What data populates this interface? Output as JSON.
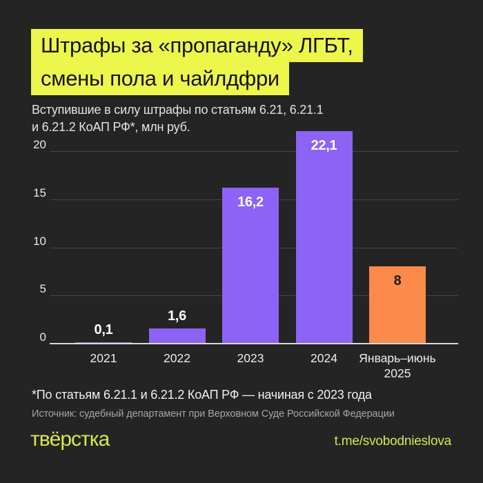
{
  "title": {
    "lines": [
      "Штрафы за «пропаганду» ЛГБТ,",
      "смены пола и чайлдфри"
    ]
  },
  "subtitle": "Вступившие в силу штрафы по статьям 6.21, 6.21.1\nи 6.21.2 КоАП РФ*, млн руб.",
  "chart_data": {
    "type": "bar",
    "title": "Штрафы за «пропаганду» ЛГБТ, смены пола и чайлдфри",
    "subtitle": "Вступившие в силу штрафы по статьям 6.21, 6.21.1 и 6.21.2 КоАП РФ*, млн руб.",
    "unit": "млн руб.",
    "categories": [
      "2021",
      "2022",
      "2023",
      "2024",
      "Январь–июнь\n2025"
    ],
    "values": [
      0.1,
      1.6,
      16.2,
      22.1,
      8
    ],
    "value_labels": [
      "0,1",
      "1,6",
      "16,2",
      "22,1",
      "8"
    ],
    "bar_colors": [
      "#8c63f5",
      "#8c63f5",
      "#8c63f5",
      "#8c63f5",
      "#fb8a4b"
    ],
    "label_positions": [
      "above",
      "above",
      "inside",
      "inside",
      "inside"
    ],
    "label_colors": [
      "#ffffff",
      "#ffffff",
      "#ffffff",
      "#ffffff",
      "#1c1c1c"
    ],
    "yticks": [
      0,
      5,
      10,
      15,
      20
    ],
    "ylim": [
      0,
      22.3
    ],
    "xlabel": "",
    "ylabel": "",
    "grid": true,
    "legend": false,
    "background": "#242424"
  },
  "footnote": "*По статьям 6.21.1 и 6.21.2 КоАП РФ — начиная с 2023 года",
  "source": "Источник: судебный департамент при Верховном Суде Российской Федерации",
  "footer": {
    "logo": "твёрстка",
    "link": "t.me/svobodnieslova"
  },
  "colors": {
    "background": "#242424",
    "highlight_yellow": "#edf64a",
    "brand_yellow": "#d6e84e",
    "bar_purple": "#8c63f5",
    "bar_orange": "#fb8a4b",
    "gridline": "#474747",
    "baseline": "#d9d9d9"
  }
}
